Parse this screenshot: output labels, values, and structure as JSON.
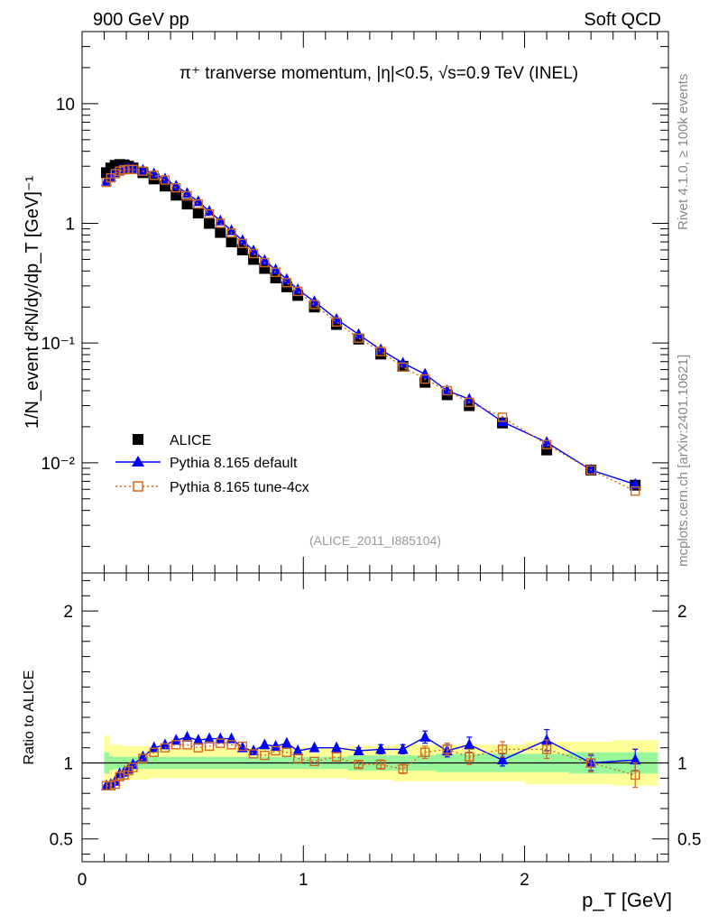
{
  "header": {
    "left": "900 GeV pp",
    "right": "Soft QCD"
  },
  "side_labels": {
    "rivet": "Rivet 4.1.0, ≥ 100k events",
    "mcplots": "mcplots.cern.ch [arXiv:2401.10621]"
  },
  "chart_data": [
    {
      "type": "scatter",
      "panel": "main",
      "title": "π⁺ tranverse momentum, |η|<0.5, √s=0.9 TeV (INEL)",
      "analysis_tag": "(ALICE_2011_I885104)",
      "xlabel": "p_T [GeV]",
      "ylabel": "1/N_event d²N/dy/dp_T [GeV]⁻¹",
      "yscale": "log",
      "xlim": [
        0,
        2.65
      ],
      "ylim": [
        0.0012,
        40
      ],
      "y_ticks": [
        {
          "value": 10,
          "label": "10"
        },
        {
          "value": 1,
          "label": "1"
        },
        {
          "value": 0.1,
          "label": "10⁻¹"
        },
        {
          "value": 0.01,
          "label": "10⁻²"
        }
      ],
      "legend_position": "bottom-left",
      "legend": [
        "ALICE",
        "Pythia 8.165 default",
        "Pythia 8.165 tune-4cx"
      ],
      "series": [
        {
          "name": "ALICE",
          "color": "#000000",
          "marker": "filled-square",
          "x": [
            0.11,
            0.13,
            0.15,
            0.17,
            0.19,
            0.21,
            0.23,
            0.275,
            0.325,
            0.375,
            0.425,
            0.475,
            0.525,
            0.575,
            0.625,
            0.675,
            0.725,
            0.775,
            0.825,
            0.875,
            0.925,
            0.975,
            1.05,
            1.15,
            1.25,
            1.35,
            1.45,
            1.55,
            1.65,
            1.75,
            1.9,
            2.1,
            2.3,
            2.5
          ],
          "values": [
            2.65,
            2.9,
            3.05,
            3.1,
            3.08,
            3.0,
            2.9,
            2.65,
            2.35,
            2.05,
            1.72,
            1.45,
            1.22,
            1.0,
            0.84,
            0.7,
            0.6,
            0.5,
            0.42,
            0.35,
            0.295,
            0.25,
            0.2,
            0.143,
            0.108,
            0.081,
            0.064,
            0.047,
            0.037,
            0.03,
            0.0215,
            0.0128,
            0.0087,
            0.0065
          ]
        },
        {
          "name": "Pythia 8.165 default",
          "color": "#0000ff",
          "marker": "filled-triangle",
          "line": "solid",
          "x": [
            0.11,
            0.13,
            0.15,
            0.17,
            0.19,
            0.21,
            0.23,
            0.275,
            0.325,
            0.375,
            0.425,
            0.475,
            0.525,
            0.575,
            0.625,
            0.675,
            0.725,
            0.775,
            0.825,
            0.875,
            0.925,
            0.975,
            1.05,
            1.15,
            1.25,
            1.35,
            1.45,
            1.55,
            1.65,
            1.75,
            1.9,
            2.1,
            2.3,
            2.5
          ],
          "values": [
            2.25,
            2.45,
            2.65,
            2.78,
            2.85,
            2.88,
            2.88,
            2.78,
            2.6,
            2.35,
            2.05,
            1.78,
            1.52,
            1.26,
            1.05,
            0.87,
            0.72,
            0.59,
            0.49,
            0.41,
            0.34,
            0.28,
            0.222,
            0.158,
            0.118,
            0.088,
            0.068,
            0.055,
            0.04,
            0.034,
            0.022,
            0.0148,
            0.0087,
            0.0066
          ]
        },
        {
          "name": "Pythia 8.165 tune-4cx",
          "color": "#d2691e",
          "marker": "open-square",
          "line": "dotted",
          "x": [
            0.11,
            0.13,
            0.15,
            0.17,
            0.19,
            0.21,
            0.23,
            0.275,
            0.325,
            0.375,
            0.425,
            0.475,
            0.525,
            0.575,
            0.625,
            0.675,
            0.725,
            0.775,
            0.825,
            0.875,
            0.925,
            0.975,
            1.05,
            1.15,
            1.25,
            1.35,
            1.45,
            1.55,
            1.65,
            1.75,
            1.9,
            2.1,
            2.3,
            2.5
          ],
          "values": [
            2.2,
            2.4,
            2.6,
            2.73,
            2.8,
            2.82,
            2.82,
            2.73,
            2.52,
            2.3,
            1.98,
            1.7,
            1.45,
            1.2,
            1.0,
            0.83,
            0.68,
            0.56,
            0.47,
            0.39,
            0.32,
            0.27,
            0.21,
            0.15,
            0.11,
            0.085,
            0.063,
            0.05,
            0.04,
            0.032,
            0.024,
            0.0142,
            0.0087,
            0.0058
          ]
        }
      ]
    },
    {
      "type": "line",
      "panel": "ratio",
      "ylabel": "Ratio to ALICE",
      "xlabel": "p_T [GeV]",
      "xlim": [
        0,
        2.65
      ],
      "ylim": [
        0.35,
        2.25
      ],
      "x_ticks": [
        {
          "value": 0,
          "label": "0"
        },
        {
          "value": 1,
          "label": "1"
        },
        {
          "value": 2,
          "label": "2"
        }
      ],
      "y_ticks": [
        {
          "value": 0.5,
          "label": "0.5"
        },
        {
          "value": 1,
          "label": "1"
        },
        {
          "value": 2,
          "label": "2"
        }
      ],
      "bands": [
        {
          "name": "ALICE stat uncertainty",
          "color": "#99f599",
          "x_edges": [
            0.1,
            0.12,
            0.14,
            0.16,
            0.18,
            0.2,
            0.22,
            0.25,
            0.3,
            0.35,
            0.4,
            0.45,
            0.5,
            0.55,
            0.6,
            0.65,
            0.7,
            0.75,
            0.8,
            0.85,
            0.9,
            0.95,
            1.0,
            1.1,
            1.2,
            1.3,
            1.4,
            1.5,
            1.6,
            1.7,
            1.8,
            2.0,
            2.2,
            2.4,
            2.6
          ],
          "half_width": [
            0.07,
            0.045,
            0.04,
            0.04,
            0.04,
            0.04,
            0.04,
            0.04,
            0.04,
            0.04,
            0.04,
            0.04,
            0.04,
            0.04,
            0.04,
            0.04,
            0.04,
            0.04,
            0.04,
            0.04,
            0.04,
            0.04,
            0.04,
            0.04,
            0.05,
            0.05,
            0.05,
            0.05,
            0.06,
            0.06,
            0.06,
            0.06,
            0.07,
            0.07
          ]
        },
        {
          "name": "ALICE total uncertainty",
          "color": "#ffff99",
          "x_edges": [
            0.1,
            0.12,
            0.14,
            0.16,
            0.18,
            0.2,
            0.22,
            0.25,
            0.3,
            0.35,
            0.4,
            0.45,
            0.5,
            0.55,
            0.6,
            0.65,
            0.7,
            0.75,
            0.8,
            0.85,
            0.9,
            0.95,
            1.0,
            1.1,
            1.2,
            1.3,
            1.4,
            1.5,
            1.6,
            1.7,
            1.8,
            2.0,
            2.2,
            2.4,
            2.6
          ],
          "half_width": [
            0.18,
            0.12,
            0.12,
            0.12,
            0.11,
            0.11,
            0.11,
            0.11,
            0.1,
            0.1,
            0.1,
            0.1,
            0.1,
            0.1,
            0.1,
            0.1,
            0.1,
            0.1,
            0.1,
            0.1,
            0.1,
            0.1,
            0.1,
            0.1,
            0.11,
            0.11,
            0.12,
            0.12,
            0.12,
            0.12,
            0.12,
            0.14,
            0.14,
            0.15,
            0.15
          ]
        }
      ],
      "reference_line": 1.0,
      "series": [
        {
          "name": "Pythia 8.165 default",
          "color": "#0000ff",
          "marker": "filled-triangle",
          "line": "solid",
          "x": [
            0.11,
            0.13,
            0.15,
            0.17,
            0.19,
            0.21,
            0.23,
            0.275,
            0.325,
            0.375,
            0.425,
            0.475,
            0.525,
            0.575,
            0.625,
            0.675,
            0.725,
            0.775,
            0.825,
            0.875,
            0.925,
            0.975,
            1.05,
            1.15,
            1.25,
            1.35,
            1.45,
            1.55,
            1.65,
            1.75,
            1.9,
            2.1,
            2.3,
            2.5
          ],
          "values": [
            0.85,
            0.86,
            0.88,
            0.93,
            0.94,
            0.96,
            0.99,
            1.04,
            1.1,
            1.12,
            1.15,
            1.17,
            1.15,
            1.16,
            1.16,
            1.16,
            1.1,
            1.08,
            1.12,
            1.11,
            1.13,
            1.08,
            1.1,
            1.1,
            1.08,
            1.09,
            1.09,
            1.17,
            1.08,
            1.12,
            1.02,
            1.15,
            1.0,
            1.02
          ],
          "errors": [
            0.01,
            0.01,
            0.01,
            0.01,
            0.01,
            0.01,
            0.01,
            0.01,
            0.01,
            0.01,
            0.01,
            0.01,
            0.01,
            0.01,
            0.01,
            0.01,
            0.01,
            0.01,
            0.01,
            0.01,
            0.01,
            0.01,
            0.01,
            0.01,
            0.02,
            0.03,
            0.03,
            0.04,
            0.04,
            0.05,
            0.04,
            0.07,
            0.05,
            0.07
          ]
        },
        {
          "name": "Pythia 8.165 tune-4cx",
          "color": "#d2691e",
          "marker": "open-square",
          "line": "dotted",
          "x": [
            0.11,
            0.13,
            0.15,
            0.17,
            0.19,
            0.21,
            0.23,
            0.275,
            0.325,
            0.375,
            0.425,
            0.475,
            0.525,
            0.575,
            0.625,
            0.675,
            0.725,
            0.775,
            0.825,
            0.875,
            0.925,
            0.975,
            1.05,
            1.15,
            1.25,
            1.35,
            1.45,
            1.55,
            1.65,
            1.75,
            1.9,
            2.1,
            2.3,
            2.5
          ],
          "values": [
            0.85,
            0.85,
            0.86,
            0.91,
            0.92,
            0.95,
            0.97,
            1.03,
            1.07,
            1.1,
            1.12,
            1.12,
            1.1,
            1.11,
            1.13,
            1.12,
            1.11,
            1.06,
            1.05,
            1.08,
            1.07,
            1.03,
            1.01,
            1.04,
            0.99,
            0.99,
            0.96,
            1.07,
            1.09,
            1.04,
            1.09,
            1.09,
            1.0,
            0.92
          ],
          "errors": [
            0.01,
            0.01,
            0.01,
            0.01,
            0.01,
            0.01,
            0.01,
            0.01,
            0.01,
            0.01,
            0.01,
            0.01,
            0.01,
            0.01,
            0.01,
            0.01,
            0.01,
            0.01,
            0.01,
            0.01,
            0.01,
            0.01,
            0.01,
            0.01,
            0.02,
            0.03,
            0.03,
            0.04,
            0.04,
            0.05,
            0.05,
            0.06,
            0.06,
            0.08
          ]
        }
      ]
    }
  ]
}
